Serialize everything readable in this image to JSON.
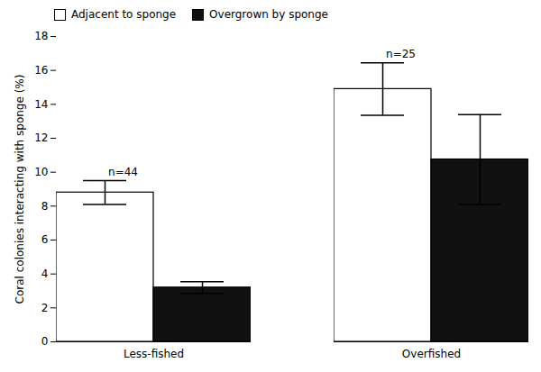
{
  "chart_data": {
    "type": "bar",
    "categories": [
      "Less-fished",
      "Overfished"
    ],
    "series": [
      {
        "name": "Adjacent to sponge",
        "color": "#ffffff",
        "values": [
          8.8,
          14.9
        ],
        "errors": [
          0.7,
          1.55
        ]
      },
      {
        "name": "Overgrown by sponge",
        "color": "#111111",
        "values": [
          3.2,
          10.75
        ],
        "errors": [
          0.35,
          2.65
        ]
      }
    ],
    "annotations": [
      "n=44",
      "n=25"
    ],
    "ylabel": "Coral colonies interacting with sponge (%)",
    "ylim": [
      0,
      18
    ],
    "yticks": [
      0,
      2,
      4,
      6,
      8,
      10,
      12,
      14,
      16,
      18
    ],
    "legend": "upper left"
  }
}
